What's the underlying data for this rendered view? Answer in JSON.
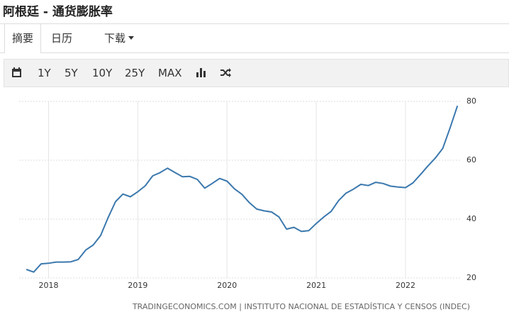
{
  "title": "阿根廷 - 通货膨胀率",
  "tabs": [
    "摘要",
    "日历",
    "下载"
  ],
  "toolbar": [
    "1Y",
    "5Y",
    "10Y",
    "25Y",
    "MAX"
  ],
  "chart_data": {
    "type": "line",
    "x": [
      2017.75,
      2017.833,
      2017.917,
      2018.0,
      2018.083,
      2018.167,
      2018.25,
      2018.333,
      2018.417,
      2018.5,
      2018.583,
      2018.667,
      2018.75,
      2018.833,
      2018.917,
      2019.0,
      2019.083,
      2019.167,
      2019.25,
      2019.333,
      2019.417,
      2019.5,
      2019.583,
      2019.667,
      2019.75,
      2019.833,
      2019.917,
      2020.0,
      2020.083,
      2020.167,
      2020.25,
      2020.333,
      2020.417,
      2020.5,
      2020.583,
      2020.667,
      2020.75,
      2020.833,
      2020.917,
      2021.0,
      2021.083,
      2021.167,
      2021.25,
      2021.333,
      2021.417,
      2021.5,
      2021.583,
      2021.667,
      2021.75,
      2021.833,
      2021.917,
      2022.0,
      2022.083,
      2022.167,
      2022.25,
      2022.333,
      2022.417,
      2022.5,
      2022.583
    ],
    "series": [
      {
        "color": "#3b78ad",
        "values": [
          22.9,
          22.0,
          24.8,
          25.0,
          25.4,
          25.4,
          25.5,
          26.3,
          29.5,
          31.2,
          34.4,
          40.5,
          45.9,
          48.5,
          47.6,
          49.3,
          51.3,
          54.7,
          55.8,
          57.3,
          55.8,
          54.4,
          54.5,
          53.5,
          50.5,
          52.1,
          53.8,
          52.9,
          50.3,
          48.4,
          45.6,
          43.4,
          42.8,
          42.4,
          40.7,
          36.6,
          37.2,
          35.8,
          36.1,
          38.5,
          40.7,
          42.6,
          46.3,
          48.8,
          50.2,
          51.8,
          51.4,
          52.5,
          52.1,
          51.2,
          50.9,
          50.7,
          52.3,
          55.1,
          58.0,
          60.7,
          64.0,
          71.0,
          78.5
        ]
      }
    ],
    "xlim": [
      2017.67,
      2022.62
    ],
    "xticks": [
      2018,
      2019,
      2020,
      2021,
      2022
    ],
    "ylim": [
      20,
      80
    ],
    "yticks": [
      20,
      40,
      60,
      80
    ],
    "grid": true
  },
  "source": "TRADINGECONOMICS.COM | INSTITUTO NACIONAL DE ESTADÍSTICA Y CENSOS (INDEC)"
}
